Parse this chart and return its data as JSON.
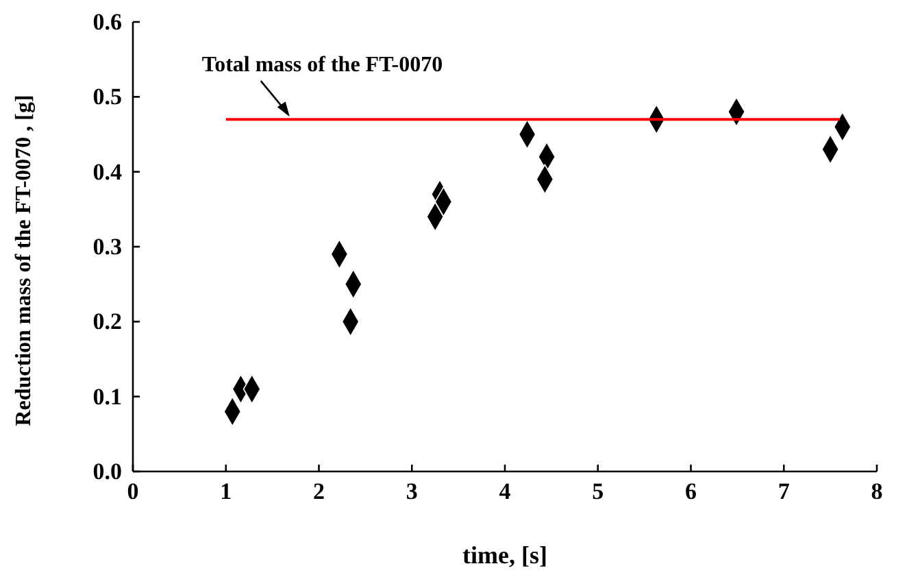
{
  "chart_data": {
    "type": "scatter",
    "xlabel": "time, [s]",
    "ylabel": "Reduction mass of the FT-0070 , [g]",
    "xlim": [
      0,
      8
    ],
    "xticks": [
      0,
      1,
      2,
      3,
      4,
      5,
      6,
      7,
      8
    ],
    "ylim": [
      0,
      0.6
    ],
    "yticks": [
      {
        "value": 0,
        "label": "0.0"
      },
      {
        "value": 0.1,
        "label": "0.1"
      },
      {
        "value": 0.2,
        "label": "0.2"
      },
      {
        "value": 0.3,
        "label": "0.3"
      },
      {
        "value": 0.4,
        "label": "0.4"
      },
      {
        "value": 0.5,
        "label": "0.5"
      },
      {
        "value": 0.6,
        "label": "0.6"
      }
    ],
    "grid": false,
    "annotations": [
      {
        "text": "Total mass of  the FT-0070",
        "x": 1.7,
        "y": 0.47
      }
    ],
    "series": [
      {
        "marker": "diamond",
        "color": "#000000",
        "x": [
          1.07,
          1.16,
          1.28,
          2.22,
          2.37,
          2.34,
          3.25,
          3.3,
          3.34,
          4.24,
          4.45,
          4.43,
          5.63,
          6.49,
          7.5,
          7.63
        ],
        "values": [
          0.08,
          0.11,
          0.11,
          0.29,
          0.25,
          0.2,
          0.34,
          0.37,
          0.36,
          0.45,
          0.42,
          0.39,
          0.47,
          0.48,
          0.43,
          0.46
        ]
      },
      {
        "type": "line",
        "color": "#ff0000",
        "x": [
          1,
          7.6
        ],
        "values": [
          0.47,
          0.47
        ]
      }
    ]
  }
}
